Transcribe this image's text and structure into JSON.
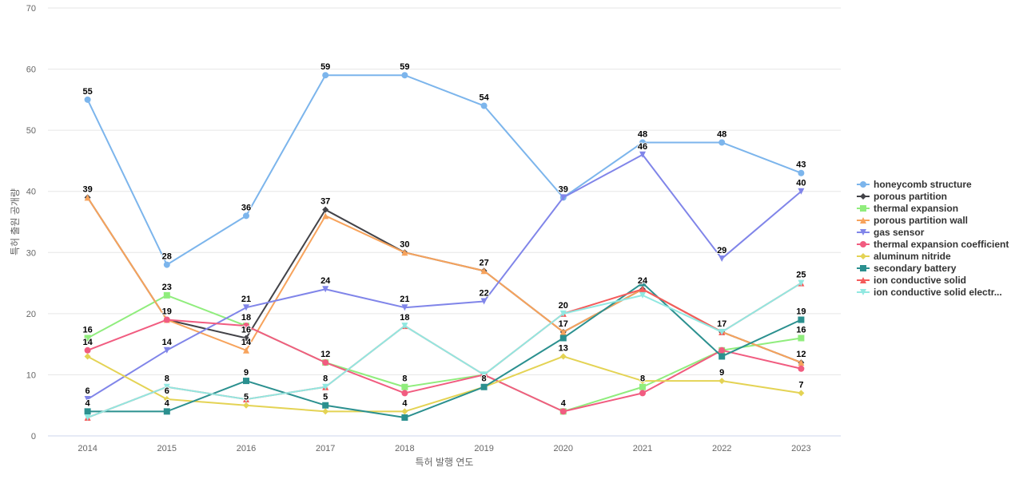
{
  "chart_data": {
    "type": "line",
    "title": "",
    "xlabel": "특허 발행 연도",
    "ylabel": "특허 출원 공개량",
    "ylim": [
      0,
      70
    ],
    "yticks": [
      0,
      10,
      20,
      30,
      40,
      50,
      60,
      70
    ],
    "grid": true,
    "legend_position": "right",
    "categories": [
      "2014",
      "2015",
      "2016",
      "2017",
      "2018",
      "2019",
      "2020",
      "2021",
      "2022",
      "2023"
    ],
    "series": [
      {
        "name": "honeycomb structure",
        "color": "#7cb5ec",
        "marker": "circle",
        "values": [
          55,
          28,
          36,
          59,
          59,
          54,
          39,
          48,
          48,
          43
        ],
        "labels": [
          true,
          true,
          true,
          true,
          true,
          true,
          true,
          true,
          true,
          true
        ]
      },
      {
        "name": "porous partition",
        "color": "#434348",
        "marker": "diamond",
        "values": [
          39,
          19,
          16,
          37,
          30,
          27,
          17,
          24,
          17,
          12
        ],
        "labels": [
          false,
          false,
          true,
          true,
          false,
          false,
          false,
          false,
          false,
          false
        ]
      },
      {
        "name": "thermal expansion",
        "color": "#90ed7d",
        "marker": "square",
        "values": [
          16,
          23,
          18,
          12,
          8,
          10,
          4,
          8,
          14,
          16
        ],
        "labels": [
          true,
          true,
          false,
          false,
          true,
          false,
          false,
          true,
          false,
          true
        ]
      },
      {
        "name": "porous partition wall",
        "color": "#f7a35c",
        "marker": "triangle",
        "values": [
          39,
          19,
          14,
          36,
          30,
          27,
          17,
          24,
          17,
          12
        ],
        "labels": [
          true,
          false,
          true,
          false,
          true,
          true,
          true,
          false,
          true,
          true
        ]
      },
      {
        "name": "gas sensor",
        "color": "#8085e9",
        "marker": "triangle-down",
        "values": [
          6,
          14,
          21,
          24,
          21,
          22,
          39,
          46,
          29,
          40
        ],
        "labels": [
          true,
          true,
          true,
          true,
          true,
          true,
          false,
          true,
          true,
          true
        ]
      },
      {
        "name": "thermal expansion coefficient",
        "color": "#f15c80",
        "marker": "circle",
        "values": [
          14,
          19,
          18,
          12,
          7,
          10,
          4,
          7,
          14,
          11
        ],
        "labels": [
          true,
          true,
          true,
          true,
          false,
          false,
          true,
          false,
          false,
          false
        ]
      },
      {
        "name": "aluminum nitride",
        "color": "#e4d354",
        "marker": "diamond",
        "values": [
          13,
          6,
          5,
          4,
          4,
          8,
          13,
          9,
          9,
          7
        ],
        "labels": [
          false,
          true,
          true,
          false,
          true,
          true,
          true,
          false,
          true,
          true
        ]
      },
      {
        "name": "secondary battery",
        "color": "#2b908f",
        "marker": "square",
        "values": [
          4,
          4,
          9,
          5,
          3,
          8,
          16,
          25,
          13,
          19
        ],
        "labels": [
          true,
          true,
          true,
          true,
          false,
          false,
          false,
          false,
          false,
          true
        ]
      },
      {
        "name": "ion conductive solid",
        "color": "#f45b5b",
        "marker": "triangle",
        "values": [
          3,
          8,
          6,
          8,
          18,
          10,
          20,
          24,
          17,
          25
        ],
        "labels": [
          false,
          true,
          false,
          false,
          false,
          false,
          false,
          true,
          false,
          false
        ]
      },
      {
        "name": "ion conductive solid electr...",
        "color": "#91e8e1",
        "marker": "triangle-down",
        "values": [
          3,
          8,
          6,
          8,
          18,
          10,
          20,
          23,
          17,
          25
        ],
        "labels": [
          false,
          false,
          false,
          true,
          true,
          false,
          true,
          false,
          false,
          true
        ]
      }
    ]
  }
}
